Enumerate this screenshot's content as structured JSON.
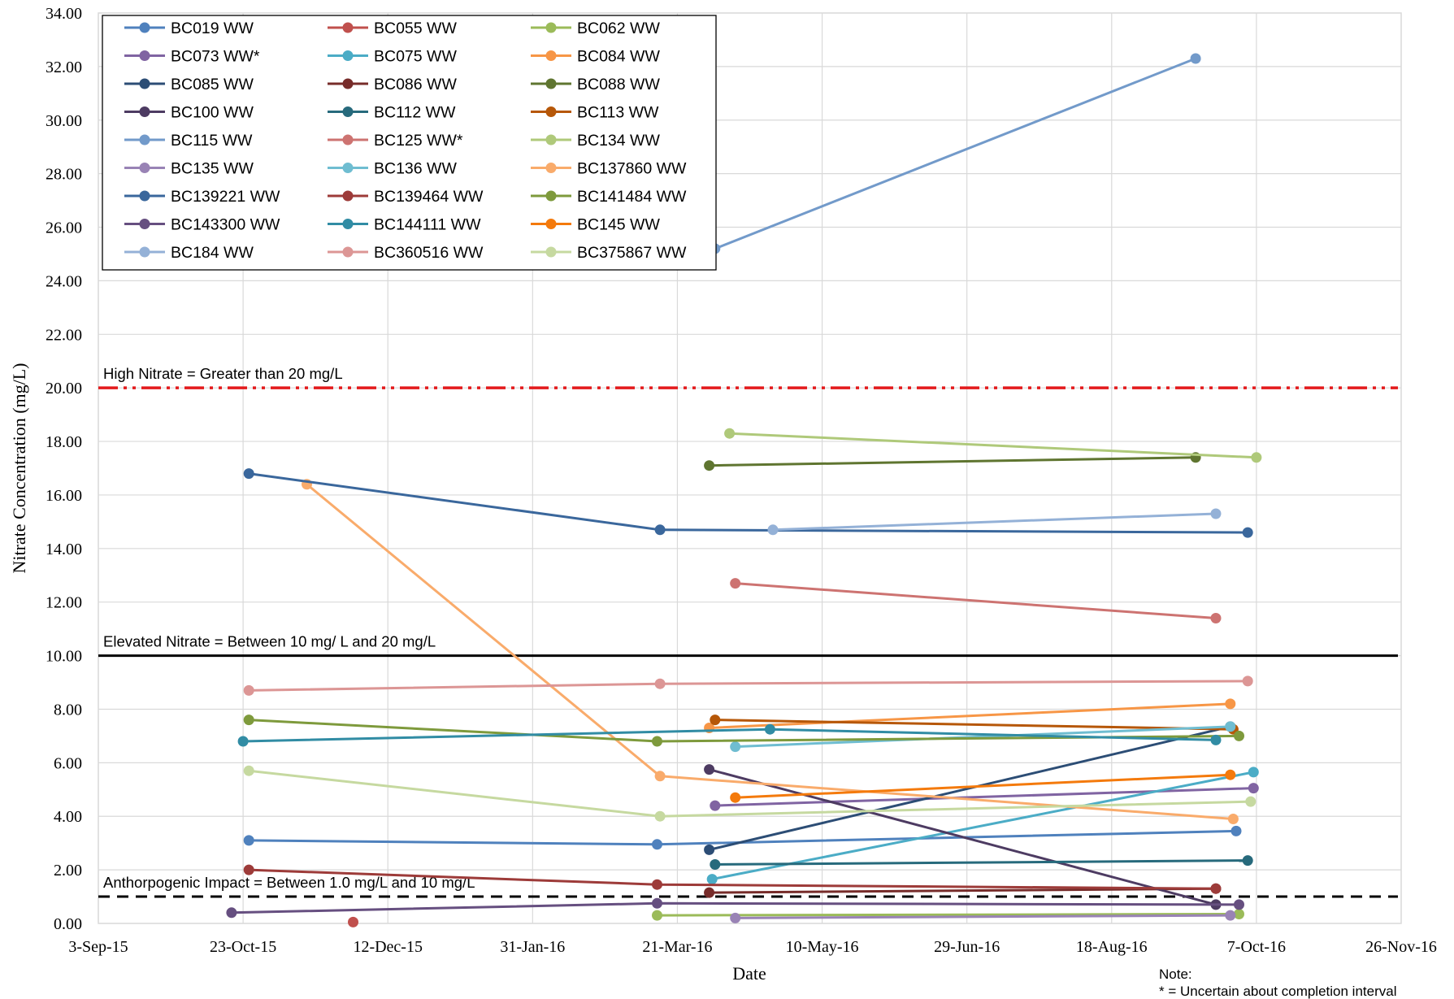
{
  "chart_data": {
    "type": "line",
    "xlabel": "Date",
    "ylabel": "Nitrate Concentration (mg/L)",
    "xlim": [
      "2015-09-03",
      "2016-11-26"
    ],
    "ylim": [
      0,
      34
    ],
    "x_ticks": [
      "3-Sep-15",
      "23-Oct-15",
      "12-Dec-15",
      "31-Jan-16",
      "21-Mar-16",
      "10-May-16",
      "29-Jun-16",
      "18-Aug-16",
      "7-Oct-16",
      "26-Nov-16"
    ],
    "y_ticks": [
      "0.00",
      "2.00",
      "4.00",
      "6.00",
      "8.00",
      "10.00",
      "12.00",
      "14.00",
      "16.00",
      "18.00",
      "20.00",
      "22.00",
      "24.00",
      "26.00",
      "28.00",
      "30.00",
      "32.00",
      "34.00"
    ],
    "grid": true,
    "legend_position": "top-left",
    "reference_lines": [
      {
        "label": "High Nitrate = Greater than 20 mg/L",
        "y": 20,
        "color": "#e31a1c",
        "style": "dash-dot"
      },
      {
        "label": "Elevated Nitrate = Between 10 mg/ L and 20 mg/L",
        "y": 10,
        "color": "#000000",
        "style": "solid"
      },
      {
        "label": "Anthorpogenic Impact = Between 1.0 mg/L and 10 mg/L",
        "y": 1,
        "color": "#000000",
        "style": "dashed"
      }
    ],
    "note_title": "Note:",
    "note_text": "* = Uncertain about completion interval",
    "series": [
      {
        "name": "BC019 WW",
        "color": "#4f81bd",
        "x": [
          "2015-10-25",
          "2016-03-14",
          "2016-09-30"
        ],
        "y": [
          3.1,
          2.95,
          3.45
        ]
      },
      {
        "name": "BC055 WW",
        "color": "#c0504d",
        "x": [
          "2015-11-30"
        ],
        "y": [
          0.05
        ]
      },
      {
        "name": "BC062 WW",
        "color": "#9bbb59",
        "x": [
          "2016-03-14",
          "2016-10-01"
        ],
        "y": [
          0.3,
          0.35
        ]
      },
      {
        "name": "BC073 WW*",
        "color": "#8064a2",
        "x": [
          "2016-04-03",
          "2016-10-06"
        ],
        "y": [
          4.4,
          5.05
        ]
      },
      {
        "name": "BC075 WW",
        "color": "#4bacc6",
        "x": [
          "2016-04-02",
          "2016-10-06"
        ],
        "y": [
          1.65,
          5.65
        ]
      },
      {
        "name": "BC084 WW",
        "color": "#f79646",
        "x": [
          "2016-04-01",
          "2016-09-28"
        ],
        "y": [
          7.3,
          8.2
        ]
      },
      {
        "name": "BC085 WW",
        "color": "#2c4d75",
        "x": [
          "2016-04-01",
          "2016-09-28"
        ],
        "y": [
          2.75,
          7.35
        ]
      },
      {
        "name": "BC086 WW",
        "color": "#772c2a",
        "x": [
          "2016-04-01",
          "2016-09-23"
        ],
        "y": [
          1.15,
          1.3
        ]
      },
      {
        "name": "BC088 WW",
        "color": "#5f7530",
        "x": [
          "2016-04-01",
          "2016-09-16"
        ],
        "y": [
          17.1,
          17.4
        ]
      },
      {
        "name": "BC100 WW",
        "color": "#4d3b62",
        "x": [
          "2016-04-01",
          "2016-09-23"
        ],
        "y": [
          5.75,
          0.7
        ]
      },
      {
        "name": "BC112 WW",
        "color": "#276a7c",
        "x": [
          "2016-04-03",
          "2016-10-04"
        ],
        "y": [
          2.2,
          2.35
        ]
      },
      {
        "name": "BC113 WW",
        "color": "#b65708",
        "x": [
          "2016-04-03",
          "2016-09-29"
        ],
        "y": [
          7.6,
          7.25
        ]
      },
      {
        "name": "BC115 WW",
        "color": "#729aca",
        "x": [
          "2016-04-03",
          "2016-09-16"
        ],
        "y": [
          25.2,
          32.3
        ]
      },
      {
        "name": "BC125 WW*",
        "color": "#cd7371",
        "x": [
          "2016-04-10",
          "2016-09-23"
        ],
        "y": [
          12.7,
          11.4
        ]
      },
      {
        "name": "BC134 WW",
        "color": "#afc97a",
        "x": [
          "2016-04-08",
          "2016-10-07"
        ],
        "y": [
          18.3,
          17.4
        ]
      },
      {
        "name": "BC135 WW",
        "color": "#9983b5",
        "x": [
          "2016-04-10",
          "2016-09-28"
        ],
        "y": [
          0.2,
          0.3
        ]
      },
      {
        "name": "BC136 WW",
        "color": "#6fbdd1",
        "x": [
          "2016-04-10",
          "2016-09-28"
        ],
        "y": [
          6.6,
          7.35
        ]
      },
      {
        "name": "BC137860 WW",
        "color": "#f9ab6b",
        "x": [
          "2015-11-14",
          "2016-03-15",
          "2016-09-29"
        ],
        "y": [
          16.4,
          5.5,
          3.9
        ]
      },
      {
        "name": "BC139221 WW",
        "color": "#3a679c",
        "x": [
          "2015-10-25",
          "2016-03-15",
          "2016-10-04"
        ],
        "y": [
          16.8,
          14.7,
          14.6
        ]
      },
      {
        "name": "BC139464 WW",
        "color": "#9d3b39",
        "x": [
          "2015-10-25",
          "2016-03-14",
          "2016-09-23"
        ],
        "y": [
          2.0,
          1.45,
          1.3
        ]
      },
      {
        "name": "BC141484 WW",
        "color": "#7e9a3c",
        "x": [
          "2015-10-25",
          "2016-03-14",
          "2016-10-01"
        ],
        "y": [
          7.6,
          6.8,
          7.0
        ]
      },
      {
        "name": "BC143300 WW",
        "color": "#664f80",
        "x": [
          "2015-10-19",
          "2016-03-14",
          "2016-10-01"
        ],
        "y": [
          0.4,
          0.75,
          0.7
        ]
      },
      {
        "name": "BC144111 WW",
        "color": "#318ca4",
        "x": [
          "2015-10-23",
          "2016-04-22",
          "2016-09-23"
        ],
        "y": [
          6.8,
          7.25,
          6.85
        ]
      },
      {
        "name": "BC145 WW",
        "color": "#f47a0c",
        "x": [
          "2016-04-10",
          "2016-09-28"
        ],
        "y": [
          4.7,
          5.55
        ]
      },
      {
        "name": "BC184 WW",
        "color": "#94b1d7",
        "x": [
          "2016-04-23",
          "2016-09-23"
        ],
        "y": [
          14.7,
          15.3
        ]
      },
      {
        "name": "BC360516 WW",
        "color": "#dc9695",
        "x": [
          "2015-10-25",
          "2016-03-15",
          "2016-10-04"
        ],
        "y": [
          8.7,
          8.95,
          9.05
        ]
      },
      {
        "name": "BC375867 WW",
        "color": "#c6d9a0",
        "x": [
          "2015-10-25",
          "2016-03-15",
          "2016-10-05"
        ],
        "y": [
          5.7,
          4.0,
          4.55
        ]
      }
    ]
  }
}
